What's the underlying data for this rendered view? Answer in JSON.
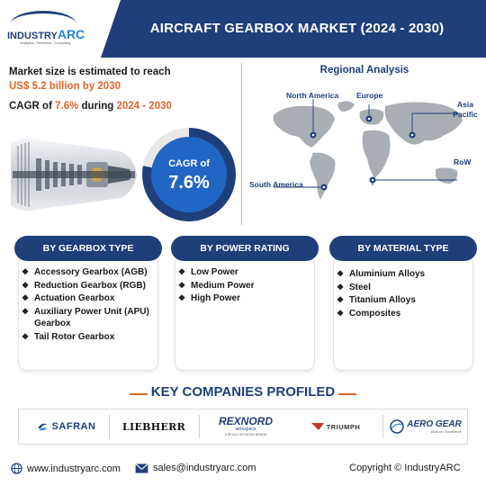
{
  "header": {
    "title": "AIRCRAFT GEARBOX MARKET (2024 - 2030)",
    "logo_prefix": "INDUSTRY",
    "logo_suffix": "ARC",
    "logo_tagline": "Analytics. Research. Consulting"
  },
  "summary": {
    "line1": "Market size is estimated to reach",
    "size_value": "US$ 5.2 billion by 2030",
    "cagr_prefix": "CAGR of ",
    "cagr_value": "7.6%",
    "cagr_mid": " during ",
    "cagr_period": "2024 - 2030"
  },
  "cagr_ring": {
    "label": "CAGR of",
    "value": "7.6%"
  },
  "regional": {
    "title": "Regional Analysis",
    "regions": [
      "North America",
      "Europe",
      "Asia Pacific",
      "South America",
      "RoW"
    ]
  },
  "segments": [
    {
      "title": "BY GEARBOX TYPE",
      "items": [
        "Accessory Gearbox (AGB)",
        "Reduction Gearbox (RGB)",
        "Actuation Gearbox",
        "Auxiliary Power Unit (APU) Gearbox",
        "Tail Rotor Gearbox"
      ]
    },
    {
      "title": "BY POWER RATING",
      "items": [
        "Low Power",
        "Medium Power",
        "High Power"
      ]
    },
    {
      "title": "BY MATERIAL TYPE",
      "items": [
        "Aluminium Alloys",
        "Steel",
        "Titanium Alloys",
        "Composites"
      ]
    }
  ],
  "companies": {
    "title": "KEY COMPANIES PROFILED",
    "list": [
      "SAFRAN",
      "LIEBHERR",
      "REXNORD",
      "TRIUMPH",
      "AERO GEAR"
    ],
    "rexnord_sub": "aerospace",
    "rexnord_tag": "A REGAL REXNORD BRAND",
    "aerogear_tag": "Built on Excellence"
  },
  "footer": {
    "website": "www.industryarc.com",
    "email": "sales@industryarc.com",
    "copyright": "Copyright © IndustryARC"
  },
  "colors": {
    "navy": "#1f3f7a",
    "accent_orange": "#e0642c",
    "ring_blue": "#2166c2"
  }
}
